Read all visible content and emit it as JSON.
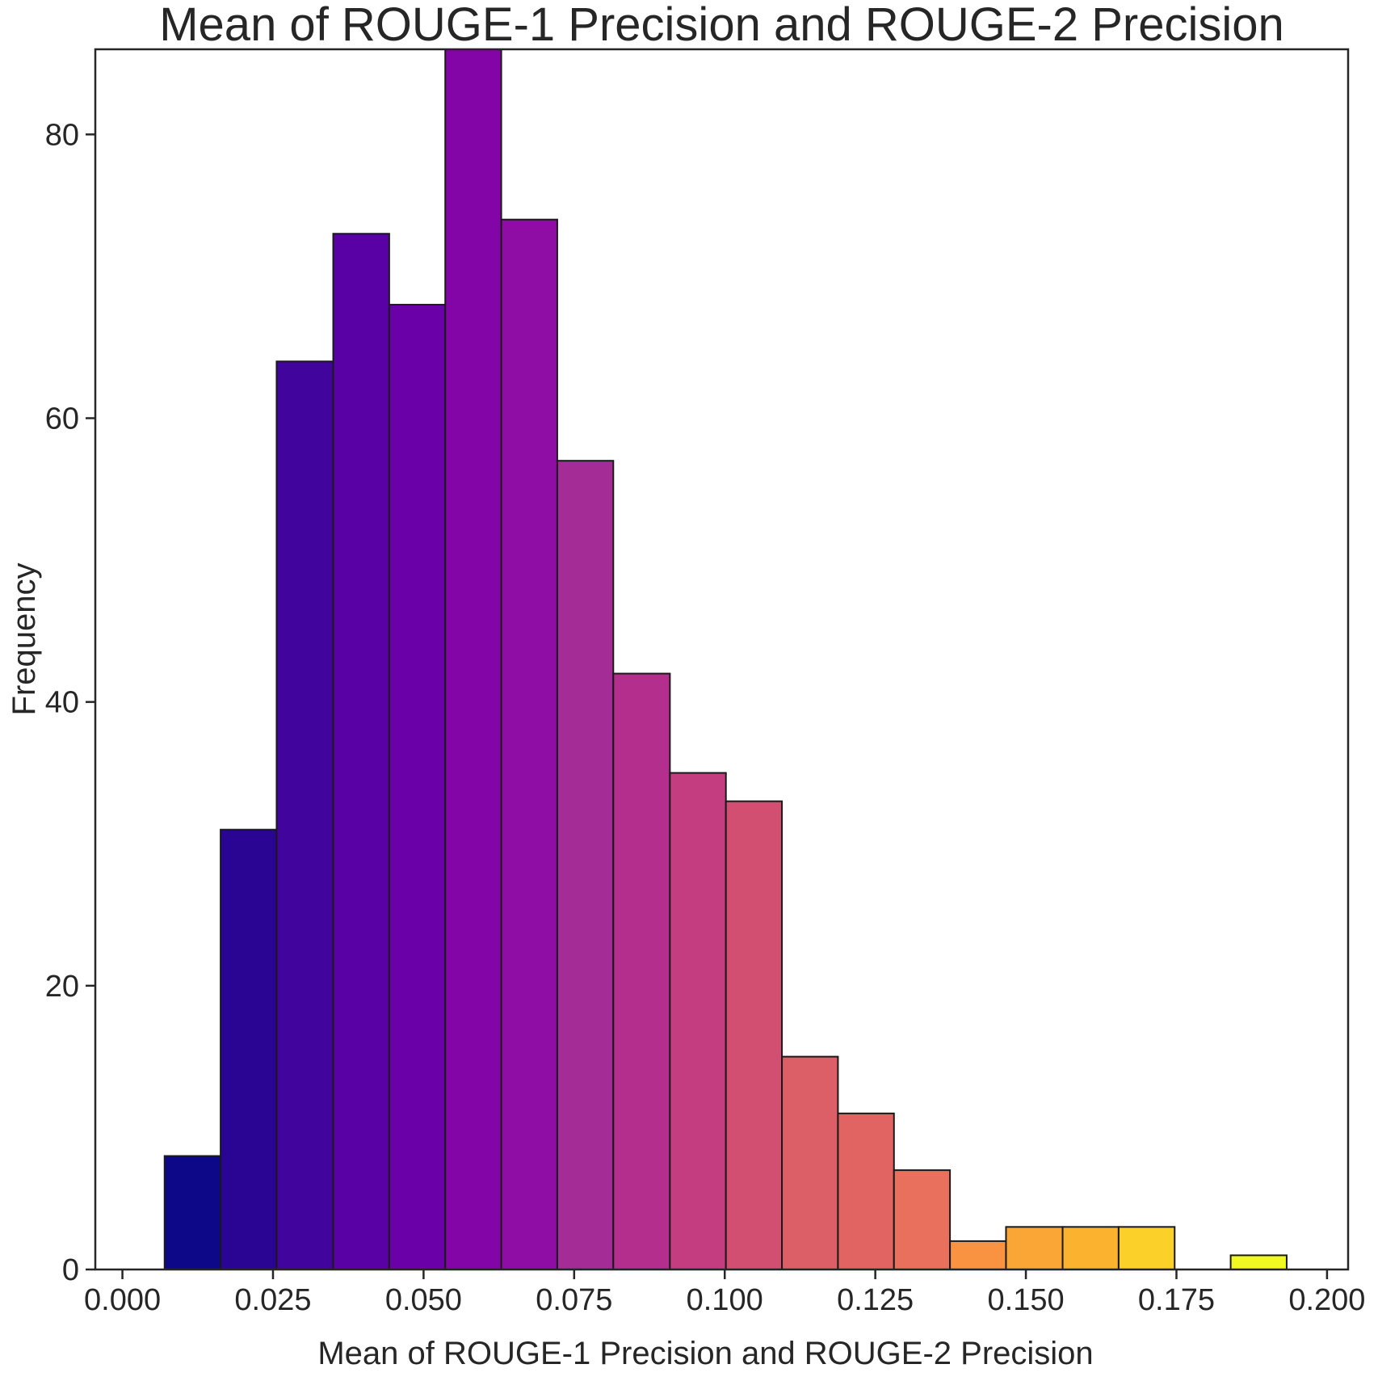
{
  "chart_data": {
    "type": "bar",
    "subtype": "histogram",
    "title": "Mean of ROUGE-1 Precision and ROUGE-2 Precision",
    "xlabel": "Mean of ROUGE-1 Precision and ROUGE-2 Precision",
    "ylabel": "Frequency",
    "xlim": [
      -0.0045,
      0.2035
    ],
    "ylim": [
      0,
      86
    ],
    "grid": false,
    "legend": "none",
    "colormap": "plasma",
    "x_ticks": [
      "0.000",
      "0.025",
      "0.050",
      "0.075",
      "0.100",
      "0.125",
      "0.150",
      "0.175",
      "0.200"
    ],
    "y_ticks": [
      "0",
      "20",
      "40",
      "60",
      "80"
    ],
    "bin_edges": [
      0.007,
      0.0163,
      0.0256,
      0.035,
      0.0443,
      0.0536,
      0.0629,
      0.0722,
      0.0815,
      0.0909,
      0.1002,
      0.1095,
      0.1188,
      0.1281,
      0.1374,
      0.1467,
      0.1561,
      0.1654,
      0.1747,
      0.184,
      0.1933
    ],
    "values": [
      8,
      31,
      64,
      73,
      68,
      86,
      74,
      57,
      42,
      35,
      33,
      15,
      11,
      7,
      2,
      3,
      3,
      3,
      0,
      1
    ],
    "colors": [
      "#0d0887",
      "#2a0593",
      "#41049d",
      "#5901a5",
      "#6a00a8",
      "#8405a7",
      "#8f0da4",
      "#a42c97",
      "#b42e8d",
      "#c33d80",
      "#d24f71",
      "#dc5e66",
      "#e16462",
      "#e8705c",
      "#f99342",
      "#f9a636",
      "#fbb32f",
      "#fad029",
      "#f4e61e",
      "#f0f921"
    ]
  }
}
